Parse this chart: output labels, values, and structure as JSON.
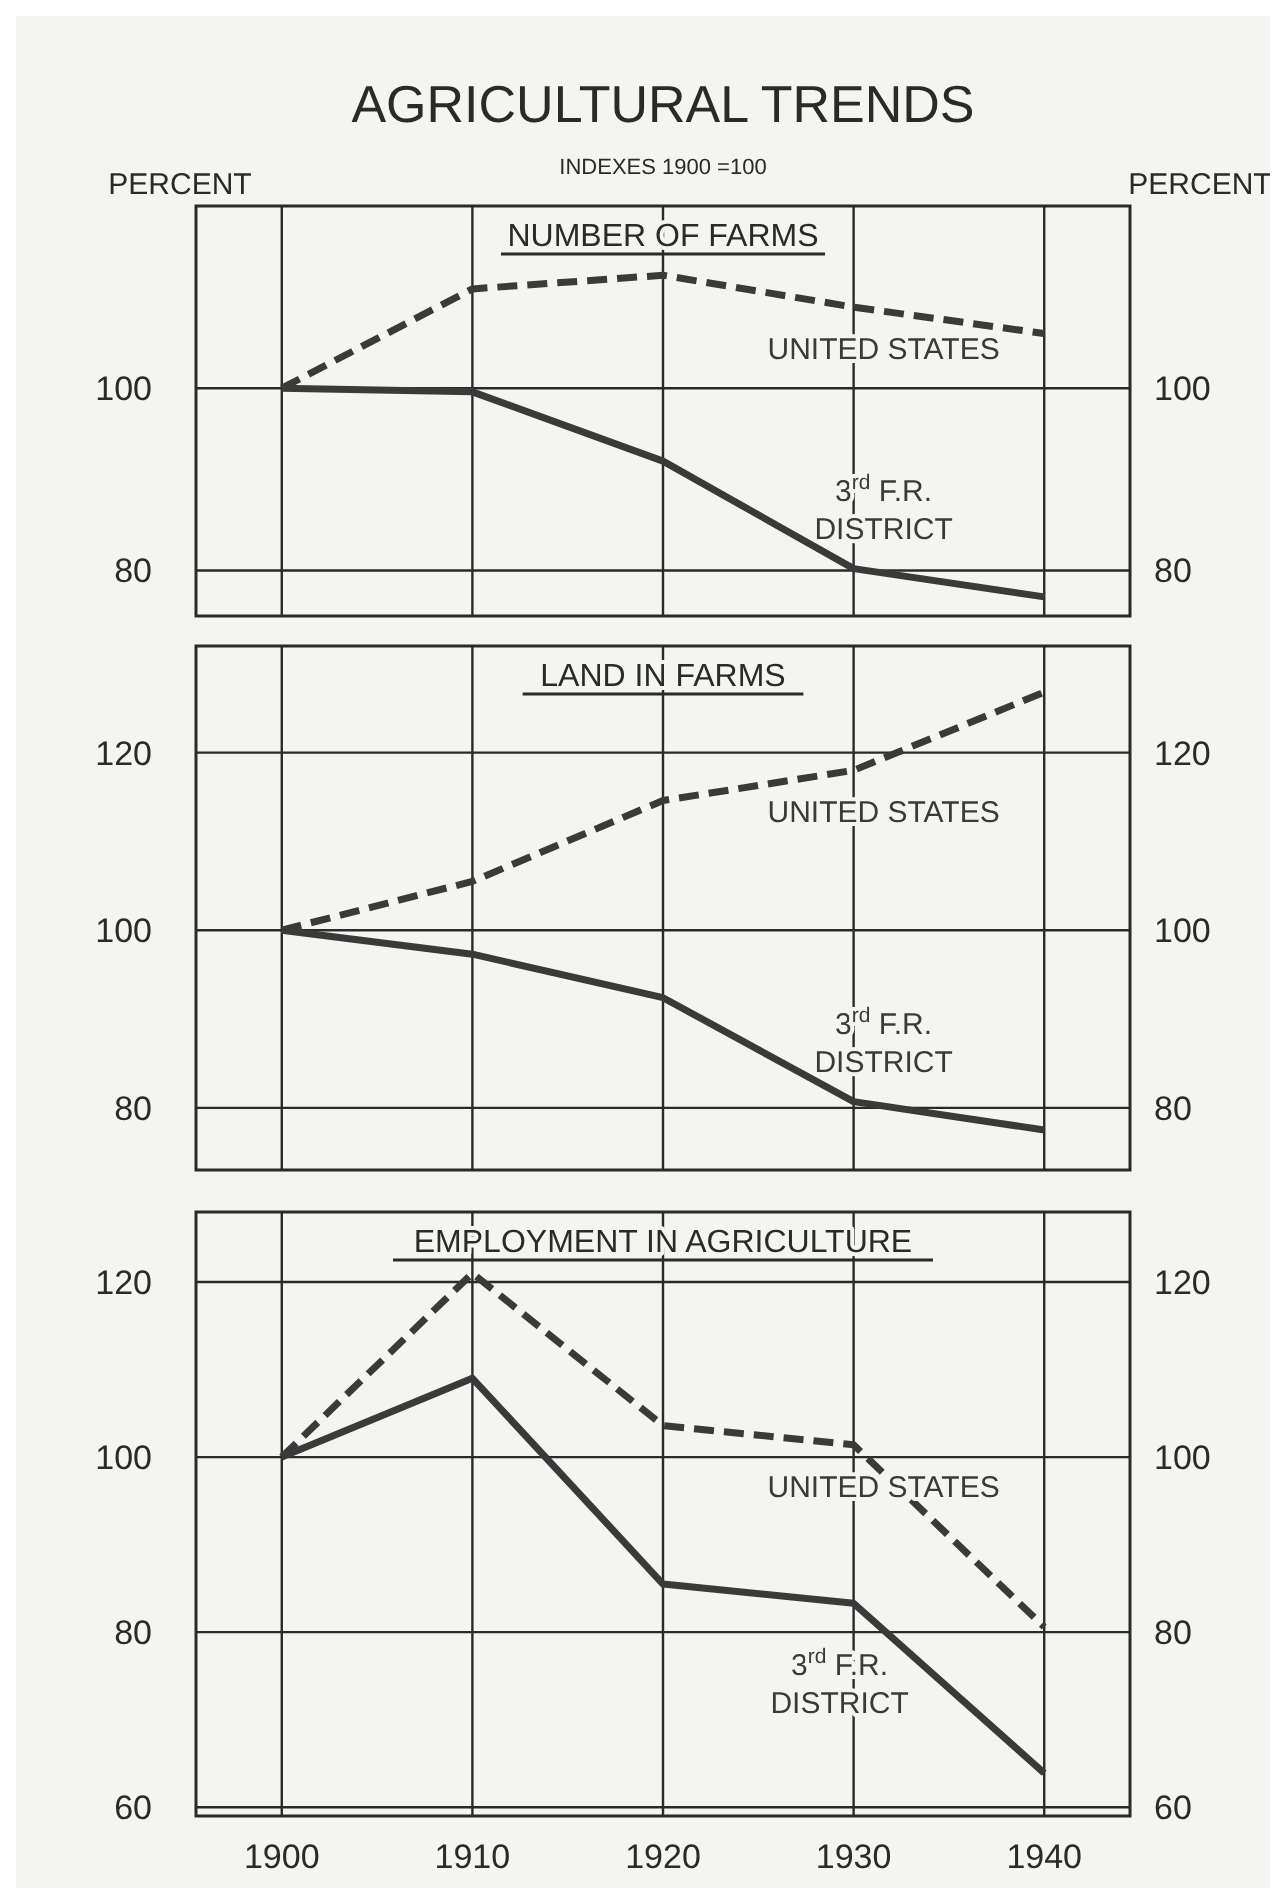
{
  "chart_data": [
    {
      "type": "line",
      "title": "NUMBER OF FARMS",
      "annotations": [
        "AGRICULTURAL TRENDS",
        "INDEXES 1900 =100"
      ],
      "ylabel": "PERCENT",
      "y2label": "PERCENT",
      "x": [
        1900,
        1910,
        1920,
        1930,
        1940
      ],
      "xlim": [
        1895.5,
        1944.5
      ],
      "xticks": [
        1900,
        1910,
        1920,
        1930,
        1940
      ],
      "ylim": [
        75,
        120
      ],
      "yticks": [
        80,
        100
      ],
      "y2lim": [
        75,
        120
      ],
      "y2ticks": [
        80,
        100
      ],
      "grid": true,
      "tick_labels": "y",
      "series": [
        {
          "name": "UNITED STATES",
          "color": "#3a3a3a",
          "line_style": "dashed",
          "values": [
            100,
            110.9,
            112.4,
            108.9,
            106
          ]
        },
        {
          "name": "3$^{rd}$ F.R. DISTRICT",
          "color": "#3a3a3a",
          "line_style": "solid",
          "values": [
            100,
            99.6,
            92,
            80.2,
            77.1
          ]
        }
      ]
    },
    {
      "type": "line",
      "title": "LAND IN FARMS",
      "x": [
        1900,
        1910,
        1920,
        1930,
        1940
      ],
      "xlim": [
        1895.5,
        1944.5
      ],
      "xticks": [
        1900,
        1910,
        1920,
        1930,
        1940
      ],
      "ylim": [
        73,
        132
      ],
      "yticks": [
        80,
        100,
        120
      ],
      "y2lim": [
        73,
        132
      ],
      "y2ticks": [
        80,
        100,
        120
      ],
      "grid": true,
      "tick_labels": "y",
      "series": [
        {
          "name": "UNITED STATES",
          "color": "#3a3a3a",
          "line_style": "dashed",
          "values": [
            100,
            105.5,
            114.6,
            118,
            126.8
          ]
        },
        {
          "name": "3$^{rd}$ F.R. DISTRICT",
          "color": "#3a3a3a",
          "line_style": "solid",
          "values": [
            100,
            97.3,
            92.4,
            80.7,
            77.5
          ]
        }
      ]
    },
    {
      "type": "line",
      "title": "EMPLOYMENT IN AGRICULTURE",
      "x": [
        1900,
        1910,
        1920,
        1930,
        1940
      ],
      "xlim": [
        1895.5,
        1944.5
      ],
      "xticks": [
        1900,
        1910,
        1920,
        1930,
        1940
      ],
      "ylim": [
        59,
        128
      ],
      "yticks": [
        60,
        80,
        100,
        120
      ],
      "y2lim": [
        59,
        128
      ],
      "y2ticks": [
        60,
        80,
        100,
        120
      ],
      "grid": true,
      "series": [
        {
          "name": "UNITED STATES",
          "color": "#3a3a3a",
          "line_style": "dashed",
          "values": [
            100,
            121,
            103.6,
            101.4,
            80.6
          ]
        },
        {
          "name": "3$^{rd}$ F.R. DISTRICT",
          "color": "#3a3a3a",
          "line_style": "solid",
          "values": [
            100,
            109,
            85.5,
            83.3,
            63.9
          ]
        }
      ]
    }
  ]
}
